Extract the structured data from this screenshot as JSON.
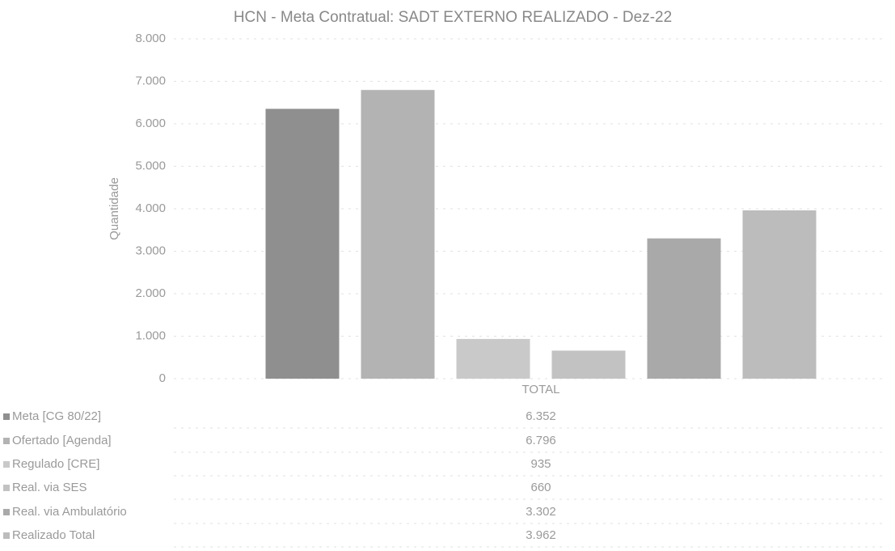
{
  "chart_data": {
    "type": "bar",
    "title": "HCN - Meta Contratual: SADT EXTERNO REALIZADO - Dez-22",
    "ylabel": "Quantidade",
    "categories": [
      "TOTAL"
    ],
    "series": [
      {
        "name": "Meta [CG 80/22]",
        "color": "#8f8f8f",
        "values": [
          6352
        ],
        "value_labels": [
          "6.352"
        ]
      },
      {
        "name": "Ofertado [Agenda]",
        "color": "#b3b3b3",
        "values": [
          6796
        ],
        "value_labels": [
          "6.796"
        ]
      },
      {
        "name": "Regulado [CRE]",
        "color": "#c9c9c9",
        "values": [
          935
        ],
        "value_labels": [
          "935"
        ]
      },
      {
        "name": "Real. via SES",
        "color": "#c2c2c2",
        "values": [
          660
        ],
        "value_labels": [
          "660"
        ]
      },
      {
        "name": "Real. via Ambulatório",
        "color": "#a9a9a9",
        "values": [
          3302
        ],
        "value_labels": [
          "3.302"
        ]
      },
      {
        "name": "Realizado Total",
        "color": "#bcbcbc",
        "values": [
          3962
        ],
        "value_labels": [
          "3.962"
        ]
      }
    ],
    "ylim": [
      0,
      8000
    ],
    "yticks": [
      0,
      {
        "value": 1000,
        "label": "1.000"
      },
      {
        "value": 2000,
        "label": "2.000"
      },
      {
        "value": 3000,
        "label": "3.000"
      },
      {
        "value": 4000,
        "label": "4.000"
      },
      {
        "value": 5000,
        "label": "5.000"
      },
      {
        "value": 6000,
        "label": "6.000"
      },
      {
        "value": 7000,
        "label": "7.000"
      },
      {
        "value": 8000,
        "label": "8.000"
      }
    ],
    "grid": true
  }
}
